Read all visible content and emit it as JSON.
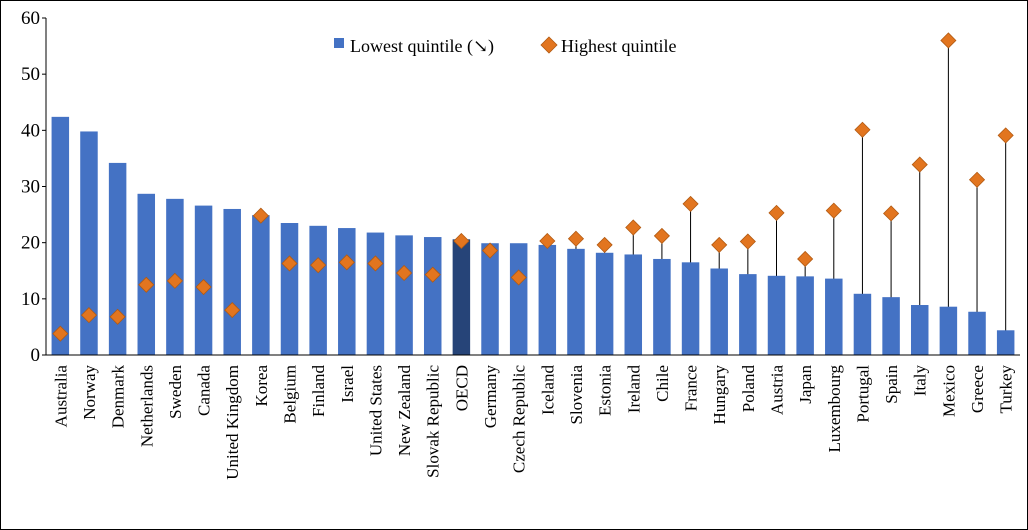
{
  "chart_data": {
    "type": "bar",
    "title": "",
    "xlabel": "",
    "ylabel": "",
    "ylim": [
      0,
      60
    ],
    "yticks": [
      0,
      10,
      20,
      30,
      40,
      50,
      60
    ],
    "grid": false,
    "legend_position": "top-center",
    "highlight_category": "OECD",
    "categories": [
      "Australia",
      "Norway",
      "Denmark",
      "Netherlands",
      "Sweden",
      "Canada",
      "United Kingdom",
      "Korea",
      "Belgium",
      "Finland",
      "Israel",
      "United States",
      "New Zealand",
      "Slovak Republic",
      "OECD",
      "Germany",
      "Czech Republic",
      "Iceland",
      "Slovenia",
      "Estonia",
      "Ireland",
      "Chile",
      "France",
      "Hungary",
      "Poland",
      "Austria",
      "Japan",
      "Luxembourg",
      "Portugal",
      "Spain",
      "Italy",
      "Mexico",
      "Greece",
      "Turkey"
    ],
    "series": [
      {
        "name": "Lowest quintile (↘)",
        "kind": "bar",
        "color": "#4472C4",
        "highlight_color": "#264478",
        "values": [
          42.4,
          39.8,
          34.2,
          28.7,
          27.8,
          26.6,
          26.0,
          24.9,
          23.5,
          23.0,
          22.6,
          21.8,
          21.3,
          21.0,
          20.6,
          19.9,
          19.9,
          19.6,
          18.9,
          18.2,
          17.9,
          17.1,
          16.5,
          15.4,
          14.4,
          14.1,
          14.0,
          13.6,
          10.9,
          10.3,
          8.9,
          8.6,
          7.7,
          4.4
        ]
      },
      {
        "name": "Highest quintile",
        "kind": "marker",
        "color": "#E2751F",
        "values": [
          3.8,
          7.1,
          6.8,
          12.5,
          13.2,
          12.1,
          8.0,
          24.8,
          16.3,
          16.0,
          16.5,
          16.3,
          14.6,
          14.3,
          20.3,
          18.6,
          13.8,
          20.3,
          20.7,
          19.6,
          22.7,
          21.2,
          26.9,
          19.6,
          20.2,
          25.3,
          17.1,
          25.7,
          40.1,
          25.2,
          33.9,
          56.0,
          31.2,
          39.1
        ]
      }
    ]
  }
}
